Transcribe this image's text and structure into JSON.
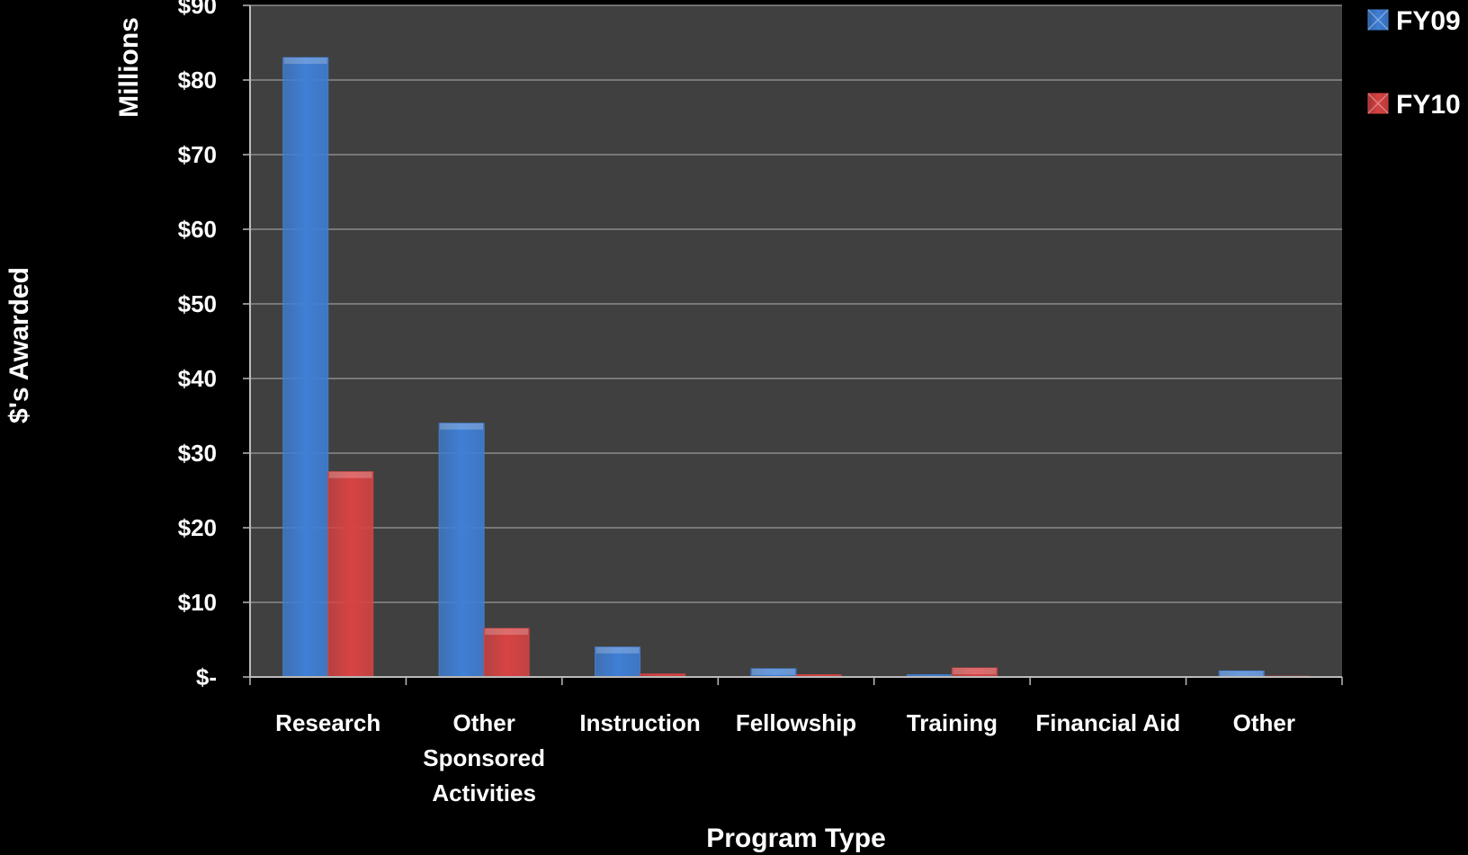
{
  "chart_data": {
    "type": "bar",
    "categories": [
      [
        "Research"
      ],
      [
        "Other",
        "Sponsored",
        "Activities"
      ],
      [
        "Instruction"
      ],
      [
        "Fellowship"
      ],
      [
        "Training"
      ],
      [
        "Financial Aid"
      ],
      [
        "Other"
      ]
    ],
    "series": [
      {
        "name": "FY09",
        "color": "#3f7fd6",
        "values": [
          83,
          34,
          4,
          1.1,
          0.3,
          0,
          0.8
        ]
      },
      {
        "name": "FY10",
        "color": "#d84343",
        "values": [
          27.5,
          6.5,
          0.4,
          0.3,
          1.2,
          0,
          0.1
        ]
      }
    ],
    "yticks": [
      0,
      10,
      20,
      30,
      40,
      50,
      60,
      70,
      80,
      90
    ],
    "ytick_labels": [
      "$-",
      "$10",
      "$20",
      "$30",
      "$40",
      "$50",
      "$60",
      "$70",
      "$80",
      "$90"
    ],
    "ylim": [
      0,
      90
    ],
    "xlabel": "Program Type",
    "ylabel": "$'s Awarded",
    "yunit_label": "Millions",
    "grid": true,
    "legend_position": "top-right",
    "plot_background": "#404040",
    "page_background": "#000000"
  }
}
